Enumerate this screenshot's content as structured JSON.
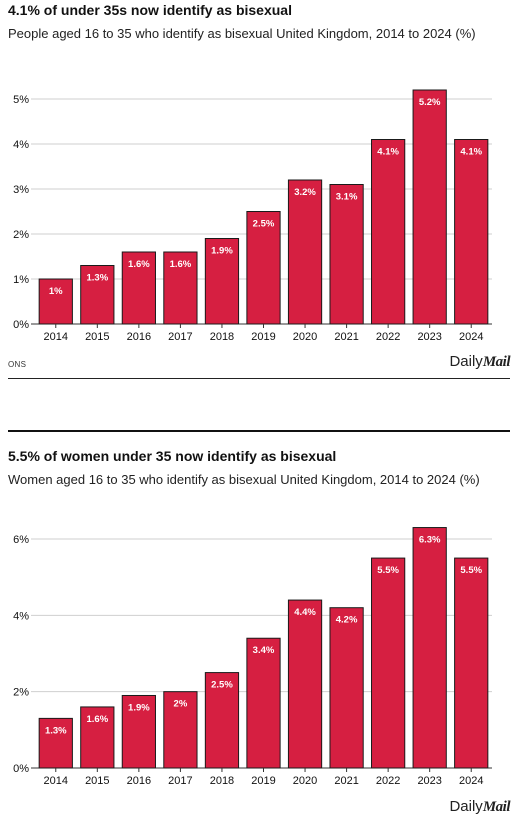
{
  "colors": {
    "bar": "#d61f41",
    "bar_stroke": "#1a1a1a",
    "grid": "#cfcfcf",
    "text": "#111111",
    "label_text": "#ffffff"
  },
  "chart_data": [
    {
      "type": "bar",
      "title": "4.1% of under 35s now identify as bisexual",
      "subtitle": "People aged 16 to 35 who identify as bisexual United Kingdom, 2014 to 2024 (%)",
      "categories": [
        "2014",
        "2015",
        "2016",
        "2017",
        "2018",
        "2019",
        "2020",
        "2021",
        "2022",
        "2023",
        "2024"
      ],
      "values": [
        1,
        1.3,
        1.6,
        1.6,
        1.9,
        2.5,
        3.2,
        3.1,
        4.1,
        5.2,
        4.1
      ],
      "data_labels": [
        "1%",
        "1.3%",
        "1.6%",
        "1.6%",
        "1.9%",
        "2.5%",
        "3.2%",
        "3.1%",
        "4.1%",
        "5.2%",
        "4.1%"
      ],
      "y_ticks": [
        0,
        1,
        2,
        3,
        4,
        5
      ],
      "y_tick_labels": [
        "0%",
        "1%",
        "2%",
        "3%",
        "4%",
        "5%"
      ],
      "ylim": [
        0,
        5
      ],
      "grid": true,
      "source": "ONS",
      "logo": {
        "daily": "Daily",
        "mail": "Mail"
      }
    },
    {
      "type": "bar",
      "title": "5.5% of women under 35 now identify as bisexual",
      "subtitle": "Women aged 16 to 35 who identify as bisexual United Kingdom, 2014 to 2024 (%)",
      "categories": [
        "2014",
        "2015",
        "2016",
        "2017",
        "2018",
        "2019",
        "2020",
        "2021",
        "2022",
        "2023",
        "2024"
      ],
      "values": [
        1.3,
        1.6,
        1.9,
        2,
        2.5,
        3.4,
        4.4,
        4.2,
        5.5,
        6.3,
        5.5
      ],
      "data_labels": [
        "1.3%",
        "1.6%",
        "1.9%",
        "2%",
        "2.5%",
        "3.4%",
        "4.4%",
        "4.2%",
        "5.5%",
        "6.3%",
        "5.5%"
      ],
      "y_ticks": [
        0,
        2,
        4,
        6
      ],
      "y_tick_labels": [
        "0%",
        "2%",
        "4%",
        "6%"
      ],
      "ylim": [
        0,
        6
      ],
      "grid": true,
      "logo": {
        "daily": "Daily",
        "mail": "Mail"
      }
    }
  ]
}
